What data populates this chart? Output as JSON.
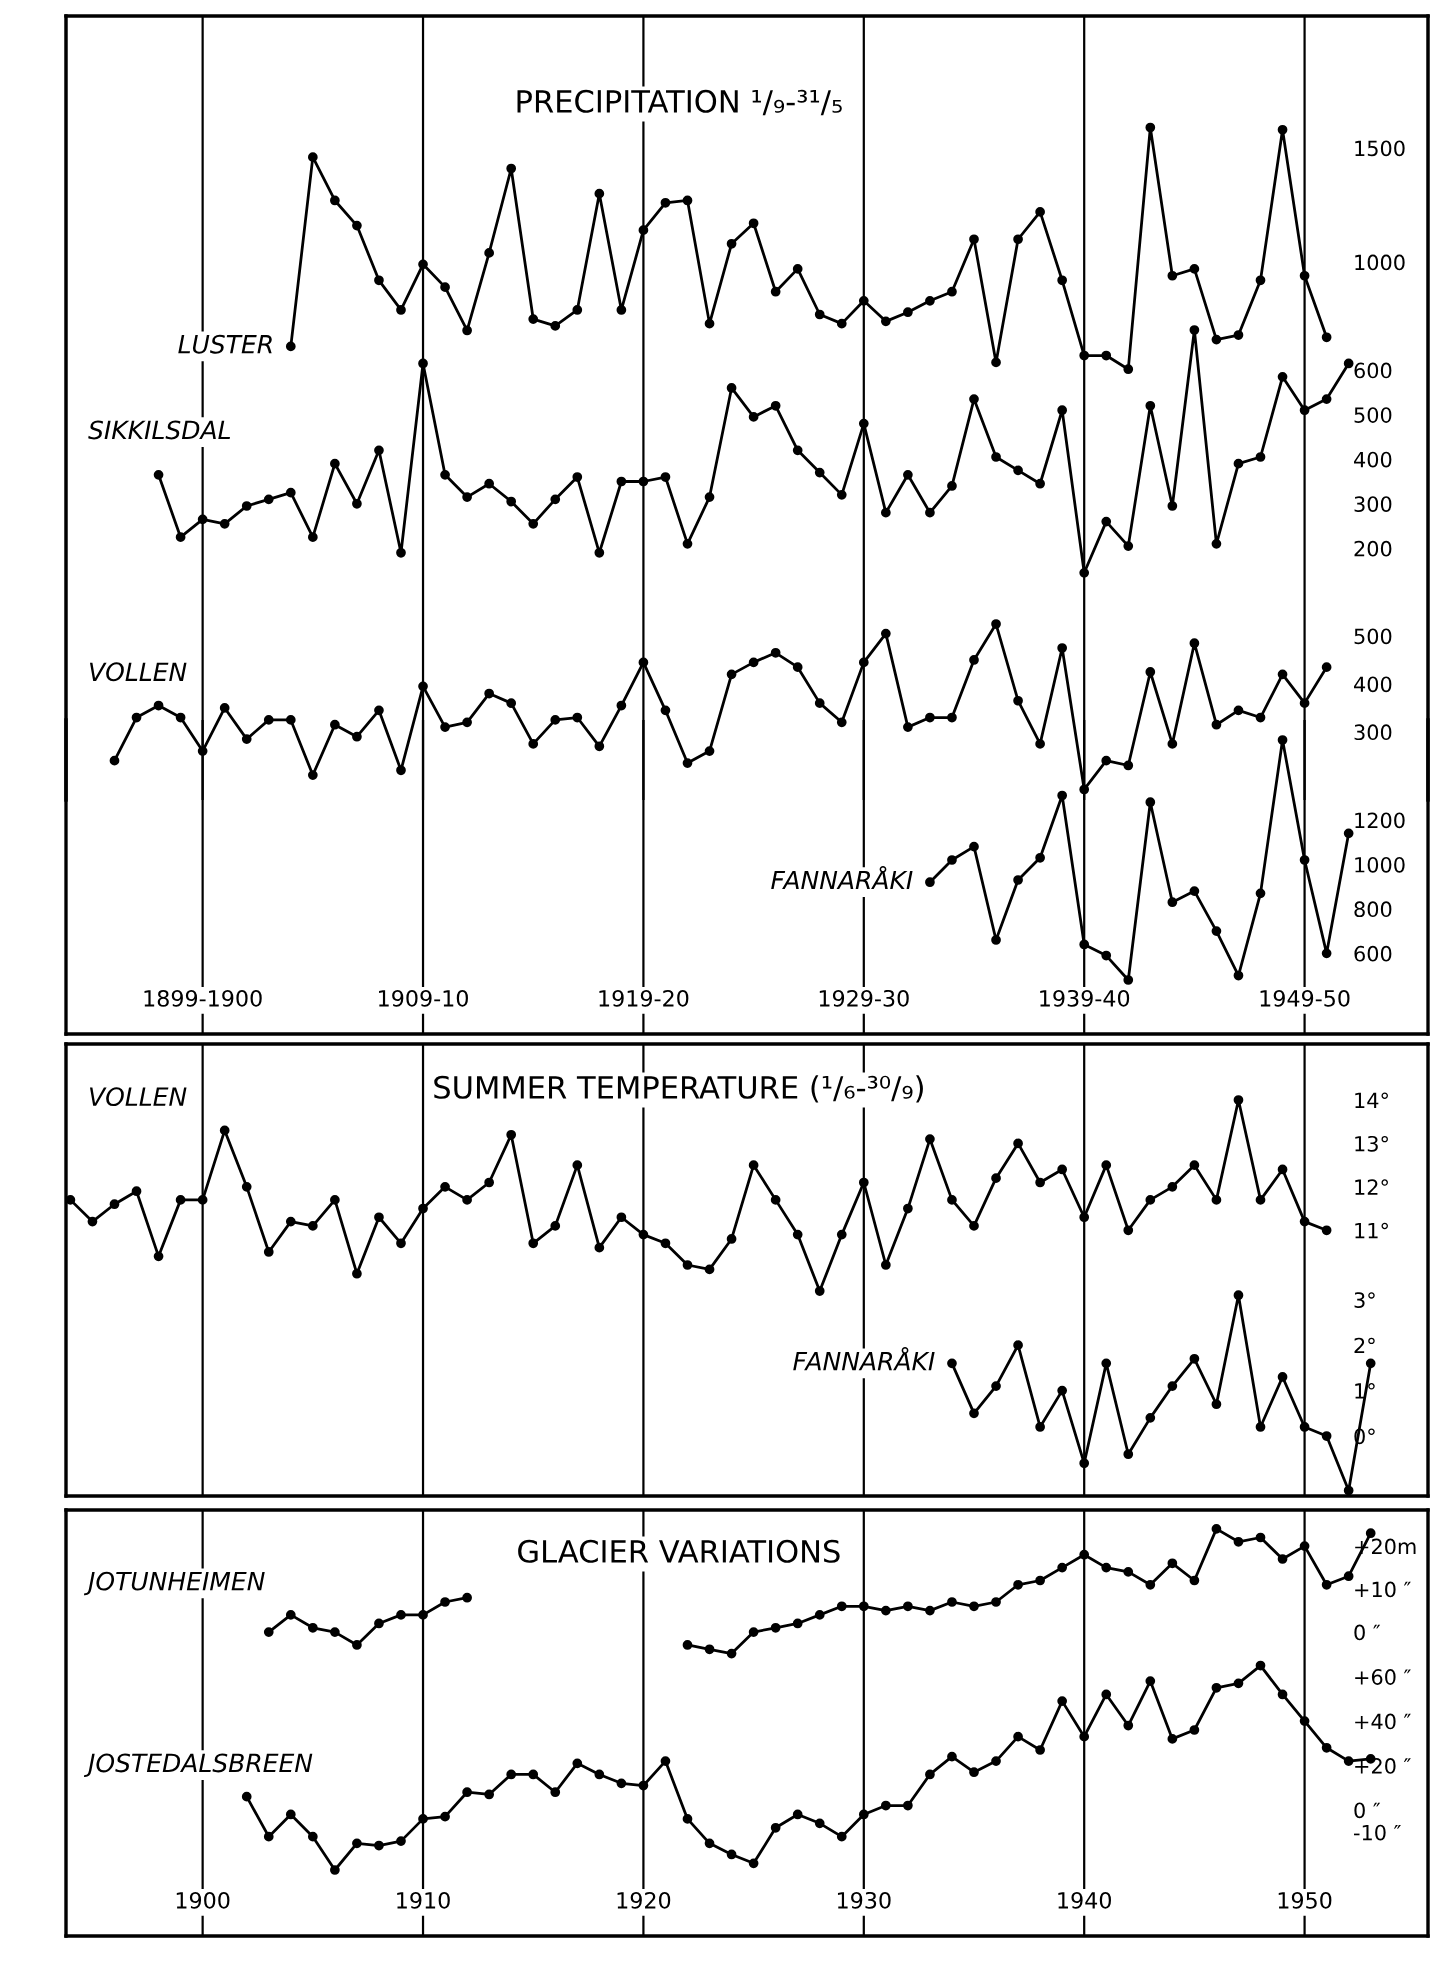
{
  "chart_data": [
    {
      "type": "line",
      "title": "PRECIPITATION ¹/₉-³¹/₅",
      "marker": "circle",
      "grid": "x",
      "categories": [
        null,
        null,
        null,
        null,
        null,
        null,
        null,
        null,
        null,
        null,
        null,
        null,
        null,
        null,
        null,
        null,
        null,
        null,
        null,
        null,
        null,
        null,
        null,
        null,
        null,
        null,
        null,
        null,
        null,
        null,
        null,
        null,
        null,
        null,
        null,
        null,
        null,
        null,
        null,
        null,
        null,
        null,
        null,
        null,
        null,
        null,
        null,
        null,
        null,
        null,
        null,
        null,
        null,
        null,
        null,
        null,
        null,
        null,
        null,
        null
      ],
      "ylim": [
        -1359,
        2079
      ],
      "yticks": [
        1000,
        1500
      ],
      "y2lim": [
        -365,
        1395
      ],
      "y2ticks": [
        200,
        300,
        400,
        500,
        600
      ],
      "y3lim": [
        158,
        1793
      ],
      "y3ticks": [
        300,
        400,
        500
      ],
      "series": [
        {
          "name": "LUSTER",
          "color": "#000000",
          "axis": "y",
          "values": [
            null,
            null,
            null,
            null,
            null,
            null,
            null,
            null,
            null,
            null,
            630,
            1460,
            1270,
            1160,
            920,
            790,
            990,
            890,
            700,
            1040,
            1410,
            750,
            720,
            790,
            1300,
            790,
            1140,
            1260,
            1270,
            730,
            1080,
            1170,
            870,
            970,
            770,
            730,
            830,
            740,
            780,
            830,
            870,
            1100,
            560,
            1100,
            1220,
            920,
            590,
            590,
            530,
            1590,
            940,
            970,
            660,
            680,
            920,
            1580,
            940,
            670,
            null,
            null
          ]
        },
        {
          "name": "SIKKILSDAL",
          "color": "#000000",
          "axis": "y2",
          "values": [
            null,
            null,
            null,
            null,
            365,
            225,
            265,
            255,
            295,
            310,
            325,
            225,
            390,
            300,
            420,
            190,
            615,
            365,
            315,
            345,
            305,
            255,
            310,
            360,
            190,
            350,
            350,
            360,
            210,
            315,
            560,
            495,
            520,
            420,
            370,
            320,
            480,
            280,
            365,
            280,
            340,
            535,
            405,
            375,
            345,
            510,
            145,
            260,
            205,
            520,
            295,
            690,
            210,
            390,
            405,
            585,
            510,
            535,
            615,
            null
          ]
        },
        {
          "name": "VOLLEN",
          "color": "#000000",
          "axis": "y3",
          "values": [
            null,
            null,
            240,
            330,
            355,
            330,
            260,
            350,
            285,
            325,
            325,
            210,
            315,
            290,
            345,
            220,
            395,
            310,
            320,
            380,
            360,
            275,
            325,
            330,
            270,
            355,
            445,
            345,
            235,
            260,
            420,
            445,
            465,
            435,
            360,
            320,
            445,
            505,
            310,
            330,
            330,
            450,
            525,
            365,
            275,
            475,
            180,
            240,
            230,
            425,
            275,
            485,
            315,
            345,
            330,
            420,
            360,
            435,
            null,
            null
          ]
        }
      ]
    },
    {
      "type": "line",
      "marker": "circle",
      "grid": "x",
      "categories": [
        null,
        null,
        null,
        null,
        null,
        null,
        "1899-1900",
        null,
        null,
        null,
        null,
        null,
        null,
        null,
        null,
        null,
        "1909-10",
        null,
        null,
        null,
        null,
        null,
        null,
        null,
        null,
        null,
        "1919-20",
        null,
        null,
        null,
        null,
        null,
        null,
        null,
        null,
        null,
        "1929-30",
        null,
        null,
        null,
        null,
        null,
        null,
        null,
        null,
        null,
        "1939-40",
        null,
        null,
        null,
        null,
        null,
        null,
        null,
        null,
        null,
        "1949-50",
        null,
        null,
        null
      ],
      "ylim": [
        237,
        1650
      ],
      "yticks": [
        600,
        800,
        1000,
        1200
      ],
      "series": [
        {
          "name": "FANNARÅKI",
          "color": "#000000",
          "values": [
            null,
            null,
            null,
            null,
            null,
            null,
            null,
            null,
            null,
            null,
            null,
            null,
            null,
            null,
            null,
            null,
            null,
            null,
            null,
            null,
            null,
            null,
            null,
            null,
            null,
            null,
            null,
            null,
            null,
            null,
            null,
            null,
            null,
            null,
            null,
            null,
            null,
            null,
            null,
            920,
            1020,
            1080,
            660,
            930,
            1030,
            1310,
            640,
            590,
            480,
            1280,
            830,
            880,
            700,
            500,
            870,
            1560,
            1020,
            600,
            1140,
            null
          ]
        }
      ]
    },
    {
      "type": "line",
      "title": "SUMMER TEMPERATURE (¹/₆-³⁰/₉)",
      "marker": "circle",
      "grid": "x",
      "categories": [
        null,
        null,
        null,
        null,
        null,
        null,
        null,
        null,
        null,
        null,
        null,
        null,
        null,
        null,
        null,
        null,
        null,
        null,
        null,
        null,
        null,
        null,
        null,
        null,
        null,
        null,
        null,
        null,
        null,
        null,
        null,
        null,
        null,
        null,
        null,
        null,
        null,
        null,
        null,
        null,
        null,
        null,
        null,
        null,
        null,
        null,
        null,
        null,
        null,
        null,
        null,
        null,
        null,
        null,
        null,
        null,
        null,
        null,
        null,
        null
      ],
      "ylim": [
        4.88,
        15.29
      ],
      "yticks": [
        {
          "value": 11,
          "label": "11°"
        },
        {
          "value": 12,
          "label": "12°"
        },
        {
          "value": 13,
          "label": "13°"
        },
        {
          "value": 14,
          "label": "14°"
        }
      ],
      "y2lim": [
        -1.32,
        8.63
      ],
      "y2ticks": [
        {
          "value": 0,
          "label": "0°"
        },
        {
          "value": 1,
          "label": "1°"
        },
        {
          "value": 2,
          "label": "2°"
        },
        {
          "value": 3,
          "label": "3°"
        }
      ],
      "series": [
        {
          "name": "VOLLEN",
          "color": "#000000",
          "axis": "y",
          "values": [
            11.7,
            11.2,
            11.6,
            11.9,
            10.4,
            11.7,
            11.7,
            13.3,
            12.0,
            10.5,
            11.2,
            11.1,
            11.7,
            10.0,
            11.3,
            10.7,
            11.5,
            12.0,
            11.7,
            12.1,
            13.2,
            10.7,
            11.1,
            12.5,
            10.6,
            11.3,
            10.9,
            10.7,
            10.2,
            10.1,
            10.8,
            12.5,
            11.7,
            10.9,
            9.6,
            10.9,
            12.1,
            10.2,
            11.5,
            13.1,
            11.7,
            11.1,
            12.2,
            13.0,
            12.1,
            12.4,
            11.3,
            12.5,
            11.0,
            11.7,
            12.0,
            12.5,
            11.7,
            14.0,
            11.7,
            12.4,
            11.2,
            11.0,
            null,
            null
          ]
        },
        {
          "name": "FANNARÅKI",
          "color": "#000000",
          "axis": "y2",
          "values": [
            null,
            null,
            null,
            null,
            null,
            null,
            null,
            null,
            null,
            null,
            null,
            null,
            null,
            null,
            null,
            null,
            null,
            null,
            null,
            null,
            null,
            null,
            null,
            null,
            null,
            null,
            null,
            null,
            null,
            null,
            null,
            null,
            null,
            null,
            null,
            null,
            null,
            null,
            null,
            null,
            1.6,
            0.5,
            1.1,
            2.0,
            0.2,
            1.0,
            -0.6,
            1.6,
            -0.4,
            0.4,
            1.1,
            1.7,
            0.7,
            3.1,
            0.2,
            1.3,
            0.2,
            0.0,
            -1.2,
            1.6
          ]
        }
      ]
    },
    {
      "type": "line",
      "title": "GLACIER VARIATIONS",
      "marker": "circle",
      "grid": "x",
      "xlim": [
        1893.8,
        1955.6
      ],
      "xticks": [
        1900,
        1910,
        1920,
        1930,
        1940,
        1950
      ],
      "ylim": [
        -70.7,
        28.4
      ],
      "yticks": [
        {
          "value": 0,
          "label": "0 ″"
        },
        {
          "value": 10,
          "label": "+10 ″"
        },
        {
          "value": 20,
          "label": "+20m"
        }
      ],
      "y2lim": [
        -56.7,
        135
      ],
      "y2ticks": [
        {
          "value": -10,
          "label": "-10 ″"
        },
        {
          "value": 0,
          "label": "0 ″"
        },
        {
          "value": 20,
          "label": "+20 ″"
        },
        {
          "value": 40,
          "label": "+40 ″"
        },
        {
          "value": 60,
          "label": "+60 ″"
        }
      ],
      "series": [
        {
          "name": "JOTUNHEIMEN",
          "color": "#000000",
          "axis": "y",
          "x": [
            1903,
            1904,
            1905,
            1906,
            1907,
            1908,
            1909,
            1910,
            1911,
            1912,
            1917,
            1922,
            1923,
            1924,
            1925,
            1926,
            1927,
            1928,
            1929,
            1930,
            1931,
            1932,
            1933,
            1934,
            1935,
            1936,
            1937,
            1938,
            1939,
            1940,
            1941,
            1942,
            1943,
            1944,
            1945,
            1946,
            1947,
            1948,
            1949,
            1950,
            1951,
            1952,
            1953
          ],
          "values": [
            0,
            4,
            1,
            0,
            -3,
            2,
            4,
            4,
            7,
            8,
            null,
            -3,
            -4,
            -5,
            0,
            1,
            2,
            4,
            6,
            6,
            5,
            6,
            5,
            7,
            6,
            7,
            11,
            12,
            15,
            18,
            15,
            14,
            11,
            16,
            12,
            24,
            21,
            22,
            17,
            20,
            11,
            13,
            23
          ]
        },
        {
          "name": "JOSTEDALSBREEN",
          "color": "#000000",
          "axis": "y2",
          "x": [
            1902,
            1903,
            1904,
            1905,
            1906,
            1907,
            1908,
            1909,
            1910,
            1911,
            1912,
            1913,
            1914,
            1915,
            1916,
            1917,
            1918,
            1919,
            1920,
            1921,
            1922,
            1923,
            1924,
            1925,
            1926,
            1927,
            1928,
            1929,
            1930,
            1931,
            1932,
            1933,
            1934,
            1935,
            1936,
            1937,
            1938,
            1939,
            1940,
            1941,
            1942,
            1943,
            1944,
            1945,
            1946,
            1947,
            1948,
            1949,
            1950,
            1951,
            1952,
            1953
          ],
          "values": [
            6,
            -12,
            -2,
            -12,
            -27,
            -15,
            -16,
            -14,
            -4,
            -3,
            8,
            7,
            16,
            16,
            8,
            21,
            16,
            12,
            11,
            22,
            -4,
            -15,
            -20,
            -24,
            -8,
            -2,
            -6,
            -12,
            -2,
            2,
            2,
            16,
            24,
            17,
            22,
            33,
            27,
            49,
            33,
            52,
            38,
            58,
            32,
            36,
            55,
            57,
            65,
            52,
            40,
            28,
            22,
            23
          ]
        }
      ]
    }
  ]
}
